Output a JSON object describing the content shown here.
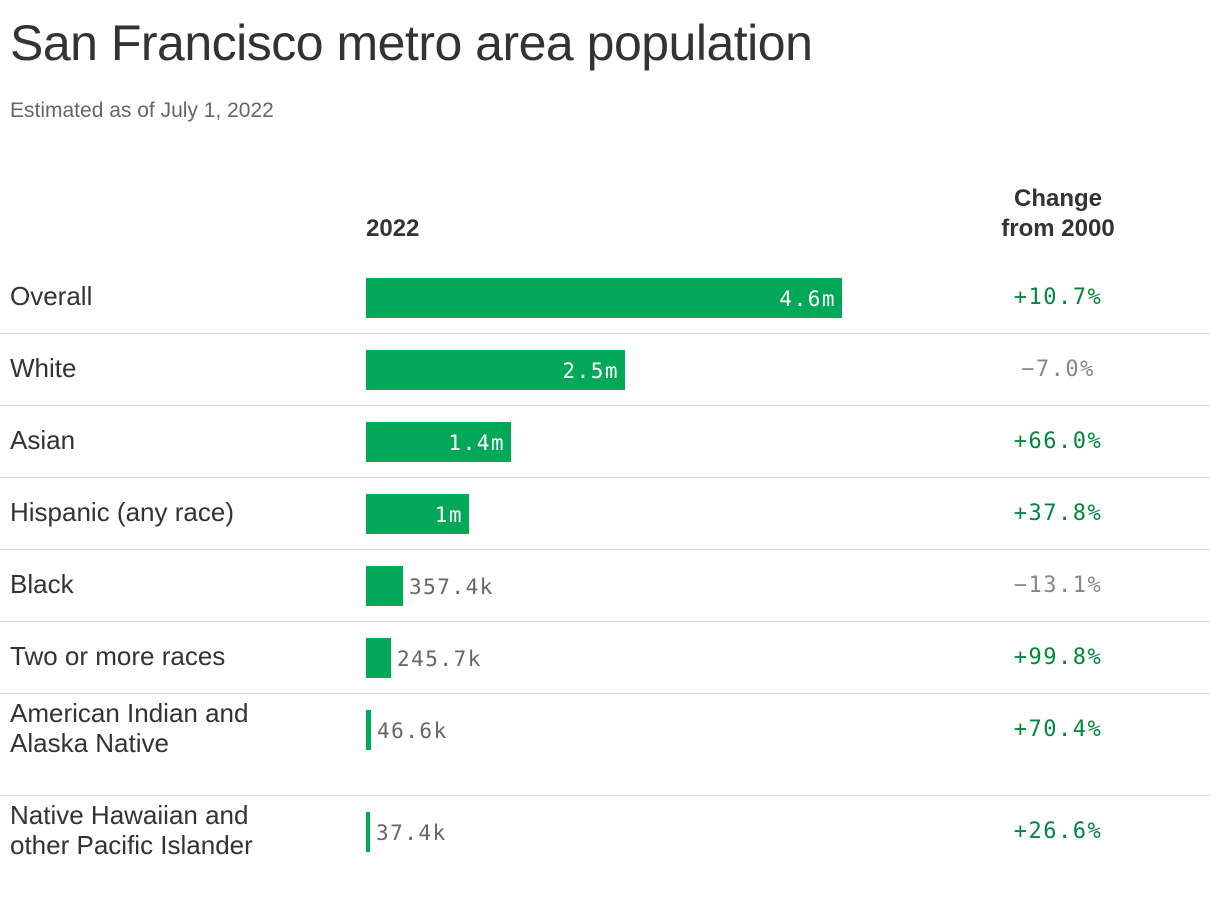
{
  "colors": {
    "bar": "#00a857",
    "positive": "#00873d",
    "negative": "#888888"
  },
  "chart_data": {
    "type": "bar",
    "title": "San Francisco metro area population",
    "subtitle": "Estimated as of July 1, 2022",
    "value_header": "2022",
    "change_header_line1": "Change",
    "change_header_line2": "from 2000",
    "categories": [
      [
        "Overall"
      ],
      [
        "White"
      ],
      [
        "Asian"
      ],
      [
        "Hispanic (any race)"
      ],
      [
        "Black"
      ],
      [
        "Two or more races"
      ],
      [
        "American Indian and",
        "Alaska Native"
      ],
      [
        "Native Hawaiian and",
        "other Pacific Islander"
      ]
    ],
    "values": [
      4600000,
      2500000,
      1400000,
      1000000,
      357400,
      245700,
      46600,
      37400
    ],
    "value_labels": [
      "4.6m",
      "2.5m",
      "1.4m",
      "1m",
      "357.4k",
      "245.7k",
      "46.6k",
      "37.4k"
    ],
    "changes": [
      "+10.7%",
      "−7.0%",
      "+66.0%",
      "+37.8%",
      "−13.1%",
      "+99.8%",
      "+70.4%",
      "+26.6%"
    ],
    "change_values": [
      10.7,
      -7.0,
      66.0,
      37.8,
      -13.1,
      99.8,
      70.4,
      26.6
    ]
  }
}
